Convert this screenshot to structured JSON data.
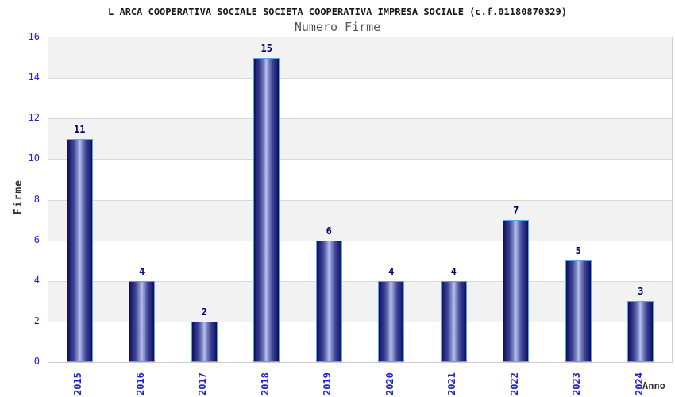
{
  "header": {
    "title": "L ARCA COOPERATIVA SOCIALE SOCIETA COOPERATIVA IMPRESA SOCIALE (c.f.01180870329)",
    "subtitle": "Numero Firme"
  },
  "chart_data": {
    "type": "bar",
    "title": "Numero Firme",
    "categories": [
      "2015",
      "2016",
      "2017",
      "2018",
      "2019",
      "2020",
      "2021",
      "2022",
      "2023",
      "2024"
    ],
    "values": [
      11,
      4,
      2,
      15,
      6,
      4,
      4,
      7,
      5,
      3
    ],
    "xlabel": "Anno",
    "ylabel": "Firme",
    "ylim": [
      0,
      16
    ],
    "ytick_step": 2,
    "yticks": [
      0,
      2,
      4,
      6,
      8,
      10,
      12,
      14,
      16
    ],
    "legend": "none",
    "grid": "horizontal alternating bands every 2 units with light gridlines",
    "bar_value_labels": [
      11,
      4,
      2,
      15,
      6,
      4,
      4,
      7,
      5,
      3
    ]
  },
  "colors": {
    "title_text": "#1a1a1a",
    "subtitle_text": "#555555",
    "axis_label_text": "#333333",
    "tick_label_blue": "#2222cc",
    "bar_value_navy": "#00006b",
    "bar_dark_edge": "#0f0f52",
    "bar_light_center": "#b9c0ea",
    "bar_border_lightblue": "#5ba3f2",
    "band_gray": "#f2f2f2",
    "gridline_gray": "#d9d9d9",
    "plot_border_gray": "#cccccc",
    "background": "#ffffff"
  }
}
